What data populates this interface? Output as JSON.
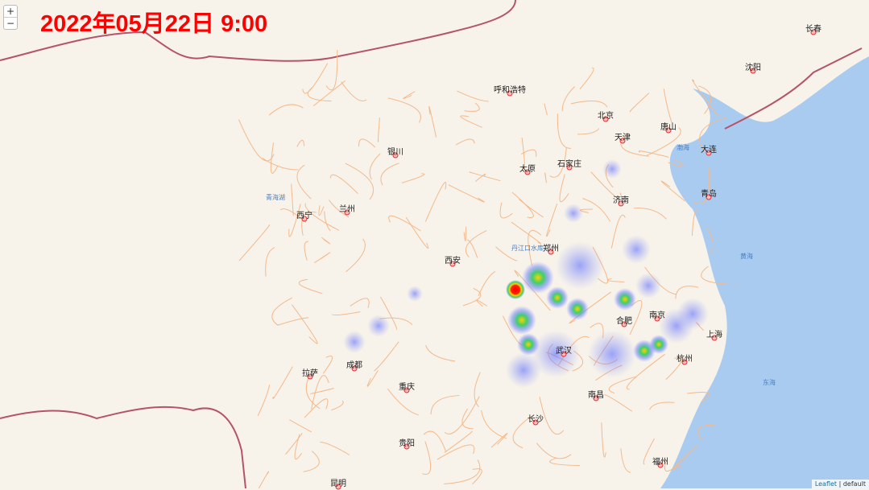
{
  "title": "2022年05月22日 9:00",
  "zoom": {
    "in_label": "+",
    "out_label": "−"
  },
  "attribution": {
    "link": "Leaflet",
    "separator": " | ",
    "layer": "default"
  },
  "colors": {
    "land": "#f7f3ea",
    "sea": "#aacbf0",
    "border": "#b5536b",
    "road": "#f4b98a",
    "heat_low": "#7a86ff",
    "heat_mid": "#3fd06b",
    "heat_high": "#ff0000"
  },
  "cities": [
    "北京",
    "天津",
    "石家庄",
    "太原",
    "呼和浩特",
    "济南",
    "郑州",
    "西安",
    "兰州",
    "西宁",
    "银川",
    "合肥",
    "南京",
    "上海",
    "杭州",
    "武汉",
    "长沙",
    "南昌",
    "成都",
    "重庆",
    "贵阳",
    "昆明",
    "拉萨",
    "福州",
    "沈阳",
    "长春",
    "唐山",
    "青岛",
    "大连"
  ],
  "water": [
    "青海湖",
    "黄海",
    "东海",
    "渤海",
    "丹江口水库"
  ],
  "heatmap_max_location": "十堰附近"
}
